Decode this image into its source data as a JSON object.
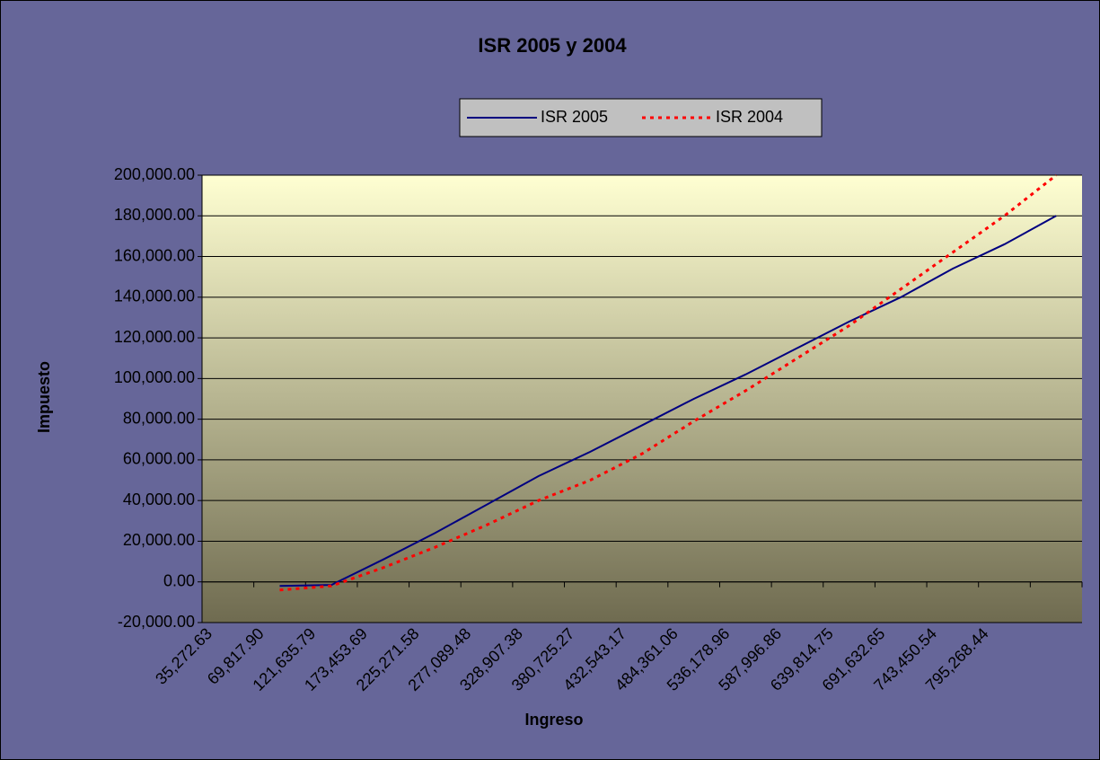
{
  "chart_data": {
    "type": "line",
    "title": "ISR 2005 y 2004",
    "x_label": "Ingreso",
    "y_label": "Impuesto",
    "categories": [
      "35,272.63",
      "69,817.90",
      "121,635.79",
      "173,453.69",
      "225,271.58",
      "277,089.48",
      "328,907.38",
      "380,725.27",
      "432,543.17",
      "484,361.06",
      "536,178.96",
      "587,996.86",
      "639,814.75",
      "691,632.65",
      "743,450.54",
      "795,268.44",
      null
    ],
    "series": [
      {
        "name": "ISR 2005",
        "color": "#000080",
        "style": "solid",
        "values": [
          null,
          -2000,
          -1500,
          11000,
          24000,
          38000,
          52000,
          64000,
          77000,
          90000,
          102000,
          115000,
          128000,
          140000,
          154000,
          166000,
          180000
        ]
      },
      {
        "name": "ISR 2004",
        "color": "#ff0000",
        "style": "dotted",
        "values": [
          null,
          -4000,
          -2000,
          7000,
          17000,
          28000,
          40000,
          50000,
          63000,
          79000,
          94000,
          110000,
          126000,
          144000,
          162000,
          180000,
          200000
        ]
      }
    ],
    "ylim": [
      -20000,
      200000
    ],
    "yticks": [
      {
        "value": -20000,
        "label": "-20,000.00"
      },
      {
        "value": 0,
        "label": "0.00"
      },
      {
        "value": 20000,
        "label": "20,000.00"
      },
      {
        "value": 40000,
        "label": "40,000.00"
      },
      {
        "value": 60000,
        "label": "60,000.00"
      },
      {
        "value": 80000,
        "label": "80,000.00"
      },
      {
        "value": 100000,
        "label": "100,000.00"
      },
      {
        "value": 120000,
        "label": "120,000.00"
      },
      {
        "value": 140000,
        "label": "140,000.00"
      },
      {
        "value": 160000,
        "label": "160,000.00"
      },
      {
        "value": 180000,
        "label": "180,000.00"
      },
      {
        "value": 200000,
        "label": "200,000.00"
      }
    ],
    "grid": true,
    "legend": "top"
  }
}
